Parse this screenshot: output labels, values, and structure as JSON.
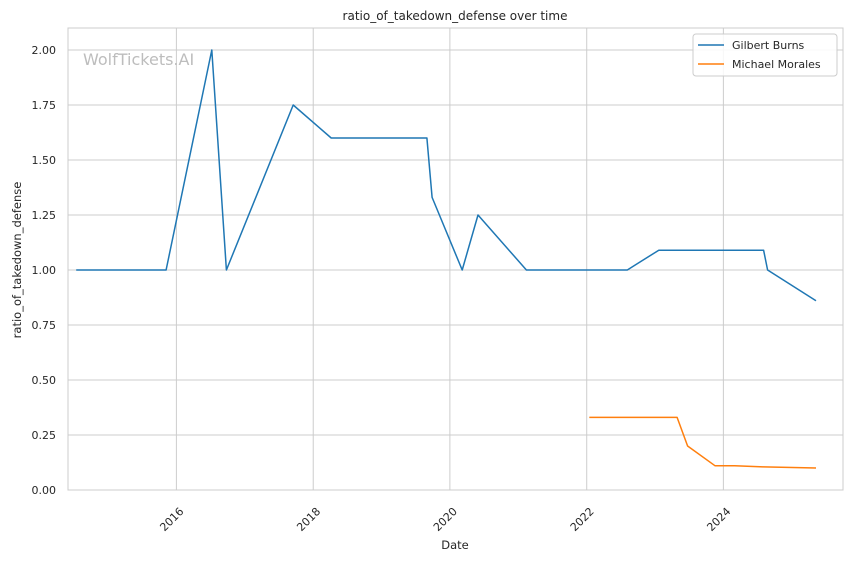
{
  "chart_data": {
    "type": "line",
    "title": "ratio_of_takedown_defense over time",
    "xlabel": "Date",
    "ylabel": "ratio_of_takedown_defense",
    "watermark": "WolfTickets.AI",
    "x_ticks": [
      "2016",
      "2018",
      "2020",
      "2022",
      "2024"
    ],
    "y_ticks": [
      "0.00",
      "0.25",
      "0.50",
      "0.75",
      "1.00",
      "1.25",
      "1.50",
      "1.75",
      "2.00"
    ],
    "xlim": [
      "2014-06-01",
      "2025-10-01"
    ],
    "ylim": [
      0,
      2.1
    ],
    "grid": true,
    "legend_position": "top-right",
    "series": [
      {
        "name": "Gilbert Burns",
        "color": "#1f77b4",
        "points": [
          [
            "2014-07-15",
            1.0
          ],
          [
            "2015-11-07",
            1.0
          ],
          [
            "2016-07-08",
            2.0
          ],
          [
            "2016-09-24",
            1.0
          ],
          [
            "2017-09-16",
            1.75
          ],
          [
            "2018-04-07",
            1.6
          ],
          [
            "2019-08-31",
            1.6
          ],
          [
            "2019-09-28",
            1.33
          ],
          [
            "2020-03-07",
            1.0
          ],
          [
            "2020-05-30",
            1.25
          ],
          [
            "2021-02-13",
            1.0
          ],
          [
            "2022-08-06",
            1.0
          ],
          [
            "2023-01-21",
            1.09
          ],
          [
            "2024-08-03",
            1.09
          ],
          [
            "2024-08-24",
            1.0
          ],
          [
            "2025-05-10",
            0.86
          ]
        ]
      },
      {
        "name": "Michael Morales",
        "color": "#ff7f0e",
        "points": [
          [
            "2022-01-15",
            0.33
          ],
          [
            "2023-04-29",
            0.33
          ],
          [
            "2023-06-24",
            0.2
          ],
          [
            "2023-11-18",
            0.11
          ],
          [
            "2024-03-01",
            0.11
          ],
          [
            "2024-08-03",
            0.105
          ],
          [
            "2025-05-10",
            0.1
          ]
        ]
      }
    ]
  }
}
